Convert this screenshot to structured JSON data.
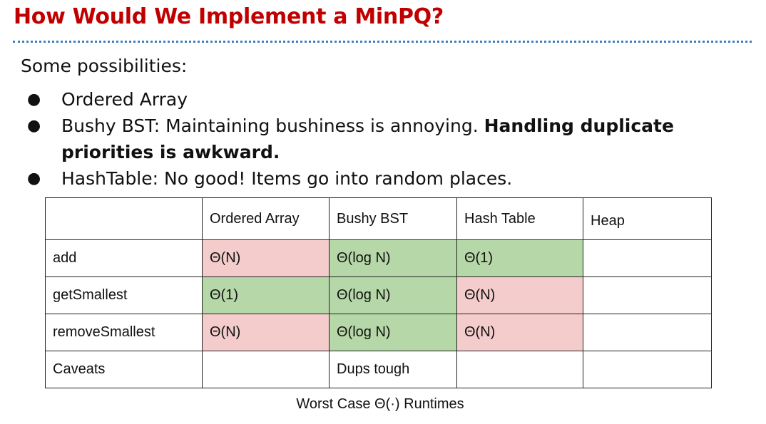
{
  "title": "How Would We Implement a MinPQ?",
  "intro": "Some possibilities:",
  "bullets": {
    "b1": "Ordered Array",
    "b2_normal": "Bushy BST: Maintaining bushiness is annoying. ",
    "b2_bold": "Handling duplicate priorities is awkward.",
    "b3": "HashTable: No good! Items go into random places."
  },
  "table": {
    "headers": [
      "",
      "Ordered Array",
      "Bushy BST",
      "Hash Table",
      "Heap"
    ],
    "rows": [
      {
        "op": "add",
        "cells": [
          "Θ(N)",
          "Θ(log N)",
          "Θ(1)",
          ""
        ]
      },
      {
        "op": "getSmallest",
        "cells": [
          "Θ(1)",
          "Θ(log N)",
          "Θ(N)",
          ""
        ]
      },
      {
        "op": "removeSmallest",
        "cells": [
          "Θ(N)",
          "Θ(log N)",
          "Θ(N)",
          ""
        ]
      },
      {
        "op": "Caveats",
        "cells": [
          "",
          "Dups tough",
          "",
          ""
        ]
      }
    ],
    "colors": {
      "bad": "#f4cccc",
      "good": "#b6d7a8"
    }
  },
  "caption": "Worst Case Θ(·) Runtimes"
}
